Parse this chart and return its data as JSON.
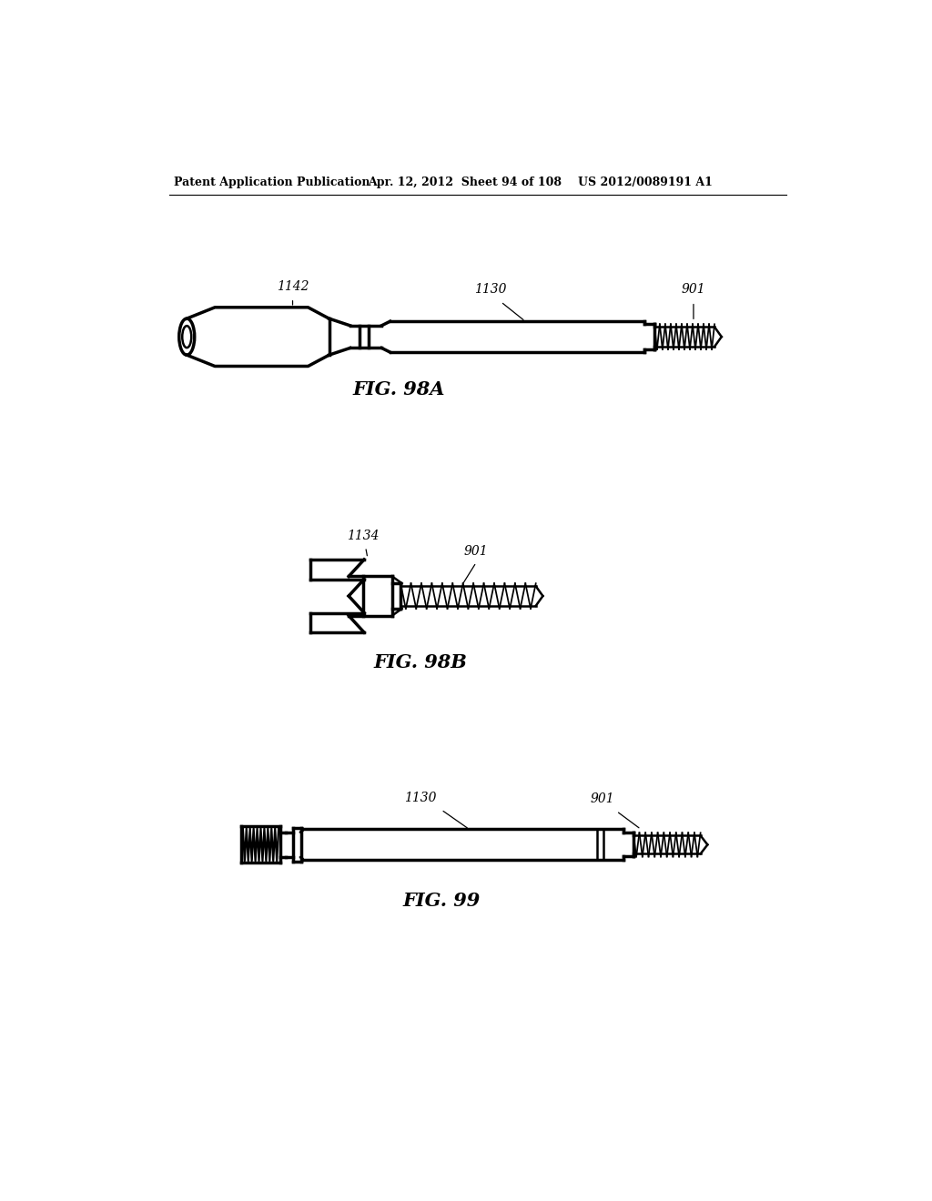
{
  "bg_color": "#ffffff",
  "header_left": "Patent Application Publication",
  "header_mid": "Apr. 12, 2012  Sheet 94 of 108",
  "header_right": "US 2012/0089191 A1",
  "fig98a_label": "FIG. 98A",
  "fig98b_label": "FIG. 98B",
  "fig99_label": "FIG. 99",
  "ref_1142": "1142",
  "ref_1130_a": "1130",
  "ref_901_a": "901",
  "ref_1134": "1134",
  "ref_901_b": "901",
  "ref_1130_c": "1130",
  "ref_901_c": "901",
  "line_color": "#000000",
  "lw": 1.8,
  "tlw": 2.5
}
